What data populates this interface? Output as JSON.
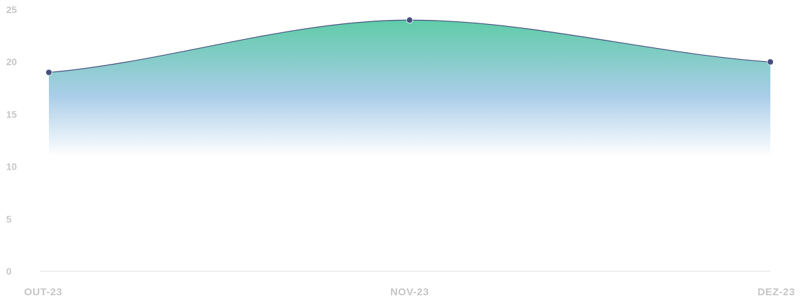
{
  "chart_data": {
    "type": "area",
    "categories": [
      "OUT-23",
      "NOV-23",
      "DEZ-23"
    ],
    "series": [
      {
        "values": [
          19,
          24,
          20
        ]
      }
    ],
    "ylim": [
      0,
      25
    ],
    "yticks": [
      "0",
      "5",
      "10",
      "15",
      "20",
      "25"
    ],
    "grid": false,
    "colors": {
      "line": "#46507e",
      "marker": "#46507e",
      "fill_top": "#5fcca8",
      "fill_mid": "#a9cde8",
      "fill_bottom": "#ffffff",
      "baseline": "#dcdcdc",
      "tick_text": "#c6c6c6"
    }
  }
}
